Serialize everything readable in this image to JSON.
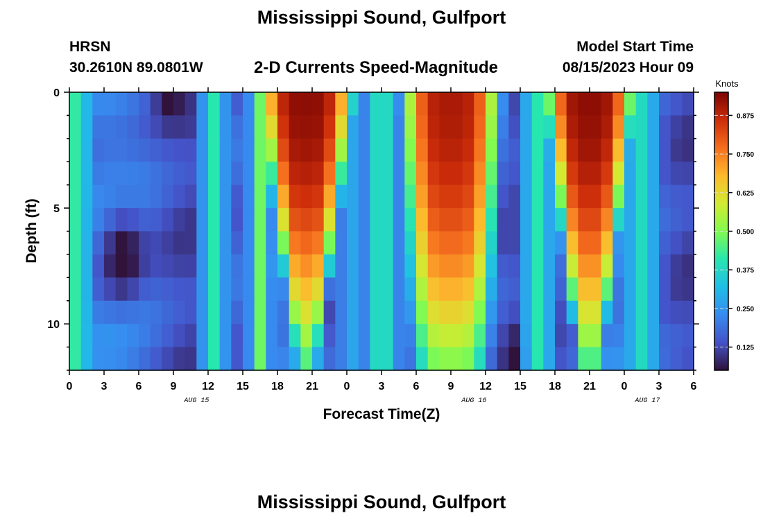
{
  "header": {
    "title": "Mississippi Sound, Gulfport",
    "station": "HRSN",
    "coordinates": "30.2610N  89.0801W",
    "plot_title": "2-D Currents Speed-Magnitude",
    "model_start_label": "Model Start Time",
    "model_start_value": "08/15/2023 Hour 09"
  },
  "footer": {
    "title": "Mississippi Sound, Gulfport"
  },
  "chart_data": {
    "type": "heatmap",
    "title": "2-D Currents Speed-Magnitude",
    "xlabel": "Forecast Time(Z)",
    "ylabel": "Depth (ft)",
    "x_tick_labels": [
      "0",
      "3",
      "6",
      "9",
      "12",
      "15",
      "18",
      "21",
      "0",
      "3",
      "6",
      "9",
      "12",
      "15",
      "18",
      "21",
      "0",
      "3",
      "6"
    ],
    "x_date_labels": [
      {
        "label": "AUG 15",
        "hours_from_start": 11
      },
      {
        "label": "AUG 16",
        "hours_from_start": 35
      },
      {
        "label": "AUG 17",
        "hours_from_start": 50
      }
    ],
    "x_range_hours": [
      0,
      54
    ],
    "y_tick_labels": [
      "0",
      "5",
      "10"
    ],
    "y_range_ft": [
      0,
      12
    ],
    "y_inverted": true,
    "colorbar": {
      "label": "Knots",
      "range": [
        0.05,
        0.95
      ],
      "ticks": [
        "0.875",
        "0.750",
        "0.625",
        "0.500",
        "0.375",
        "0.250",
        "0.125"
      ],
      "tick_values": [
        0.875,
        0.75,
        0.625,
        0.5,
        0.375,
        0.25,
        0.125
      ]
    },
    "time_bins_hours": 54,
    "depth_bins": 12,
    "speed_model_knots": [
      {
        "name": "flood-1",
        "center_hours": 20.5,
        "half_width_surface_hours": 4.2,
        "half_width_bottom_hours": 1.2,
        "max_depth_ft": 11,
        "peak_knots": 0.93
      },
      {
        "name": "flood-2",
        "center_hours": 33,
        "half_width_surface_hours": 4.2,
        "half_width_bottom_hours": 3.4,
        "max_depth_ft": 12,
        "peak_knots": 0.9
      },
      {
        "name": "flood-3",
        "center_hours": 45,
        "half_width_surface_hours": 4.0,
        "half_width_bottom_hours": 1.3,
        "max_depth_ft": 11,
        "peak_knots": 0.93
      },
      {
        "name": "slack-low",
        "center_hours": 4.5,
        "depth_ft": 7,
        "min_knots": 0.04
      }
    ]
  }
}
